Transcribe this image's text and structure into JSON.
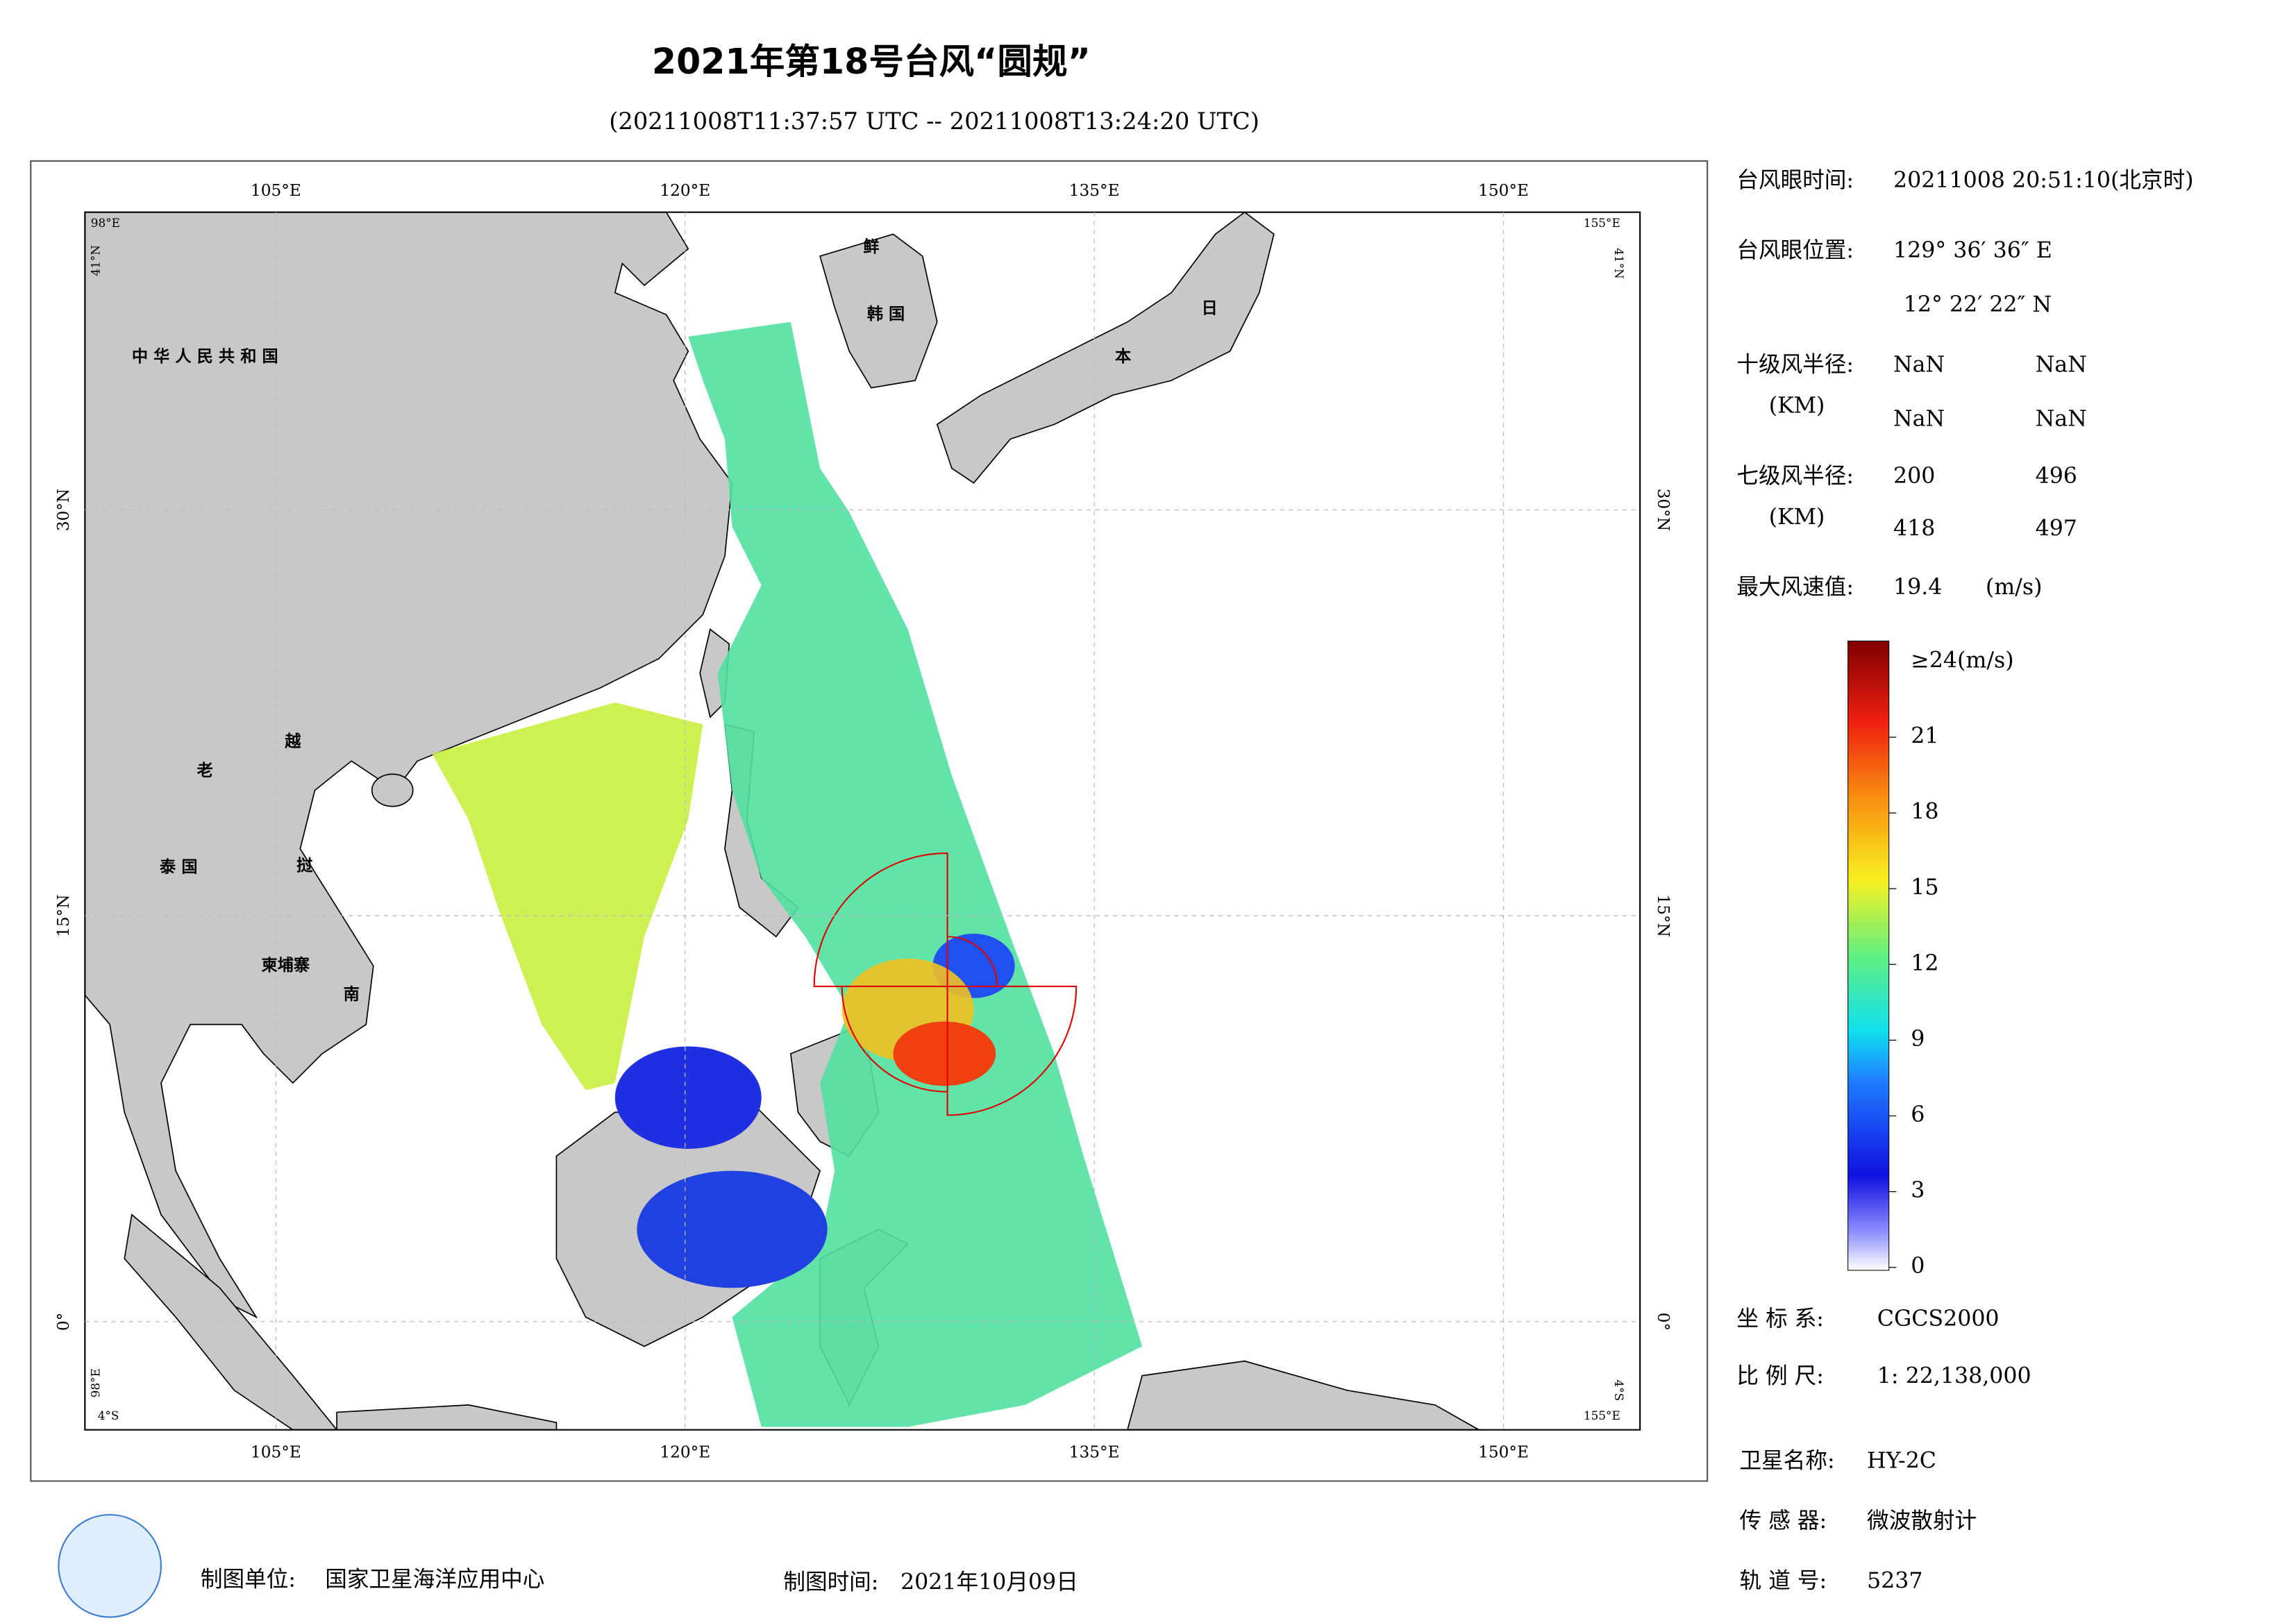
{
  "header": {
    "title": "2021年第18号台风“圆规”",
    "subtitle": "(20211008T11:37:57 UTC -- 20211008T13:24:20 UTC)"
  },
  "map": {
    "lon_ticks": [
      {
        "value": 105,
        "label": "105°E"
      },
      {
        "value": 120,
        "label": "120°E"
      },
      {
        "value": 135,
        "label": "135°E"
      },
      {
        "value": 150,
        "label": "150°E"
      }
    ],
    "lat_ticks": [
      {
        "value": 30,
        "label": "30°N"
      },
      {
        "value": 15,
        "label": "15°N"
      },
      {
        "value": 0,
        "label": "0°"
      }
    ],
    "corner_labels": {
      "west": "98°E",
      "east": "155°E",
      "north": "41°N",
      "south": "4°S"
    },
    "place_labels": [
      "中 华 人 民 共 和 国",
      "老",
      "越",
      "泰 国",
      "挝",
      "柬埔寨",
      "南",
      "鲜",
      "韩 国",
      "日",
      "本"
    ]
  },
  "info": {
    "eye_time_label": "台风眼时间:",
    "eye_time": "20211008 20:51:10(北京时)",
    "eye_pos_label": "台风眼位置:",
    "eye_lon": "129° 36′ 36″ E",
    "eye_lat": "12° 22′ 22″ N",
    "r10_label": "十级风半径:",
    "r10_unit": "(KM)",
    "r10": [
      "NaN",
      "NaN",
      "NaN",
      "NaN"
    ],
    "r7_label": "七级风半径:",
    "r7_unit": "(KM)",
    "r7": [
      200,
      496,
      418,
      497
    ],
    "max_label": "最大风速值:",
    "max_value": 19.4,
    "max_unit": "(m/s)",
    "crs_label": "坐 标 系:",
    "crs": "CGCS2000",
    "scale_label": "比 例 尺:",
    "scale": "1: 22,138,000",
    "sat_label": "卫星名称:",
    "sat": "HY-2C",
    "sensor_label": "传 感 器:",
    "sensor": "微波散射计",
    "orbit_label": "轨 道 号:",
    "orbit": 5237
  },
  "colorbar": {
    "lim": [
      0,
      24
    ],
    "ticks": [
      0,
      3,
      6,
      9,
      12,
      15,
      18,
      21
    ],
    "top_label": "≥24(m/s)"
  },
  "footer": {
    "unit_label": "制图单位:",
    "unit": "国家卫星海洋应用中心",
    "date_label": "制图时间:",
    "date": "2021年10月09日"
  }
}
